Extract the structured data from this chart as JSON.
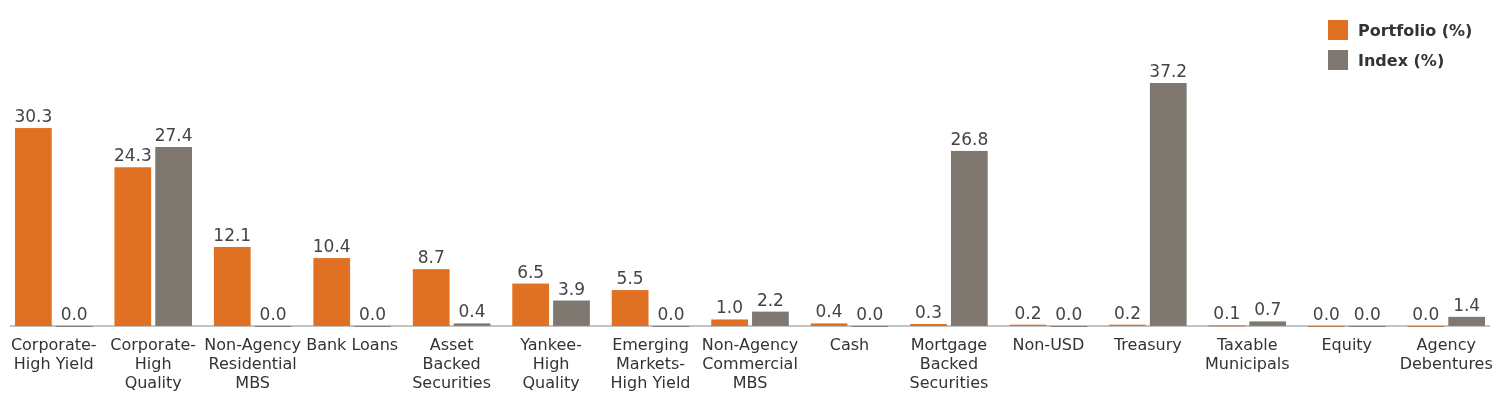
{
  "chart_data": {
    "type": "bar",
    "categories": [
      "Corporate-High Yield",
      "Corporate-High Quality",
      "Non-Agency Residential MBS",
      "Bank Loans",
      "Asset Backed Securities",
      "Yankee-High Quality",
      "Emerging Markets-High Yield",
      "Non-Agency Commercial MBS",
      "Cash",
      "Mortgage Backed Securities",
      "Non-USD",
      "Treasury",
      "Taxable Municipals",
      "Equity",
      "Agency Debentures"
    ],
    "series": [
      {
        "name": "Portfolio (%)",
        "color": "#e07022",
        "values": [
          30.3,
          24.3,
          12.1,
          10.4,
          8.7,
          6.5,
          5.5,
          1.0,
          0.4,
          0.3,
          0.2,
          0.2,
          0.1,
          0.0,
          0.0
        ],
        "value_labels": [
          "30.3",
          "24.3",
          "12.1",
          "10.4",
          "8.7",
          "6.5",
          "5.5",
          "1.0",
          "0.4",
          "0.3",
          "0.2",
          "0.2",
          "0.1",
          "0.0",
          "0.0"
        ]
      },
      {
        "name": "Index (%)",
        "color": "#7f7871",
        "values": [
          0.0,
          27.4,
          0.0,
          0.0,
          0.4,
          3.9,
          0.0,
          2.2,
          0.0,
          26.8,
          0.0,
          37.2,
          0.7,
          0.0,
          1.4
        ],
        "value_labels": [
          "0.0",
          "27.4",
          "0.0",
          "0.0",
          "0.4",
          "3.9",
          "0.0",
          "2.2",
          "0.0",
          "26.8",
          "0.0",
          "37.2",
          "0.7",
          "0.0",
          "1.4"
        ]
      }
    ],
    "legend": "top right"
  }
}
